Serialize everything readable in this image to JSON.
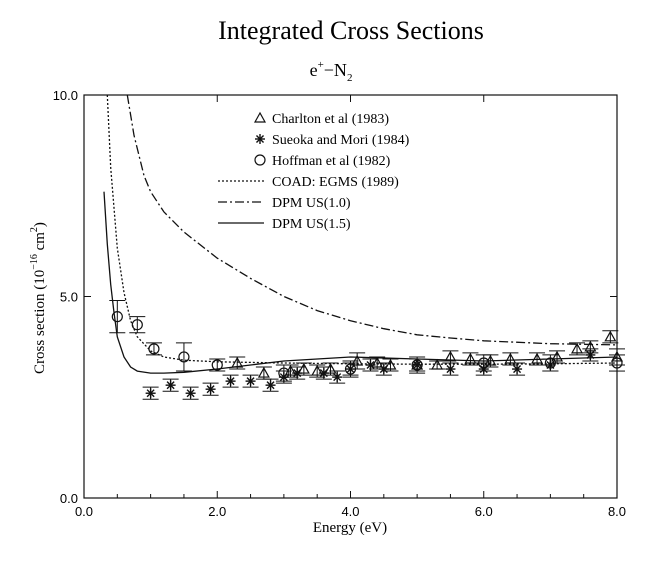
{
  "chart_data": {
    "type": "scatter",
    "title": "Integrated Cross Sections",
    "subtitle": {
      "base": "e",
      "sup": "+",
      "mid": "−N",
      "sub": "2"
    },
    "xlabel": "Energy (eV)",
    "ylabel": {
      "pre": "Cross section (10",
      "exp": "−16",
      "mid": " cm",
      "sup": "2",
      "post": ")"
    },
    "xlim": [
      0.0,
      8.0
    ],
    "ylim": [
      0.0,
      10.0
    ],
    "xticks": [
      "0.0",
      "2.0",
      "4.0",
      "6.0",
      "8.0"
    ],
    "yticks": [
      "0.0",
      "5.0",
      "10.0"
    ],
    "legend_position": "top-right",
    "series": [
      {
        "name": "Charlton et al (1983)",
        "kind": "points",
        "marker": "triangle",
        "points": [
          [
            2.3,
            3.35,
            0.15
          ],
          [
            2.7,
            3.1,
            0.15
          ],
          [
            3.1,
            3.15,
            0.15
          ],
          [
            3.3,
            3.2,
            0.15
          ],
          [
            3.5,
            3.15,
            0.15
          ],
          [
            3.7,
            3.2,
            0.15
          ],
          [
            4.1,
            3.4,
            0.2
          ],
          [
            4.4,
            3.35,
            0.15
          ],
          [
            4.6,
            3.3,
            0.15
          ],
          [
            5.0,
            3.3,
            0.15
          ],
          [
            5.3,
            3.3,
            0.1
          ],
          [
            5.5,
            3.5,
            0.15
          ],
          [
            5.8,
            3.45,
            0.15
          ],
          [
            6.1,
            3.4,
            0.15
          ],
          [
            6.4,
            3.45,
            0.15
          ],
          [
            6.8,
            3.45,
            0.15
          ],
          [
            7.1,
            3.5,
            0.15
          ],
          [
            7.4,
            3.7,
            0.15
          ],
          [
            7.6,
            3.75,
            0.15
          ],
          [
            7.9,
            4.0,
            0.15
          ],
          [
            8.0,
            3.5,
            0.2
          ]
        ]
      },
      {
        "name": "Sueoka and Mori (1984)",
        "kind": "points",
        "marker": "asterisk",
        "points": [
          [
            1.0,
            2.6,
            0.15
          ],
          [
            1.3,
            2.8,
            0.15
          ],
          [
            1.6,
            2.6,
            0.15
          ],
          [
            1.9,
            2.7,
            0.15
          ],
          [
            2.2,
            2.9,
            0.15
          ],
          [
            2.5,
            2.9,
            0.15
          ],
          [
            2.8,
            2.8,
            0.15
          ],
          [
            3.0,
            3.0,
            0.15
          ],
          [
            3.2,
            3.1,
            0.15
          ],
          [
            3.6,
            3.1,
            0.15
          ],
          [
            3.8,
            3.0,
            0.15
          ],
          [
            4.0,
            3.2,
            0.15
          ],
          [
            4.3,
            3.3,
            0.15
          ],
          [
            4.5,
            3.2,
            0.15
          ],
          [
            5.0,
            3.3,
            0.15
          ],
          [
            5.5,
            3.2,
            0.15
          ],
          [
            6.0,
            3.2,
            0.15
          ],
          [
            6.5,
            3.2,
            0.15
          ],
          [
            7.0,
            3.3,
            0.15
          ],
          [
            7.6,
            3.55,
            0.15
          ]
        ]
      },
      {
        "name": "Hoffman et al (1982)",
        "kind": "points",
        "marker": "circle",
        "points": [
          [
            0.5,
            4.5,
            0.4
          ],
          [
            0.8,
            4.3,
            0.2
          ],
          [
            1.05,
            3.7,
            0.15
          ],
          [
            1.5,
            3.5,
            0.35
          ],
          [
            2.0,
            3.3,
            0.15
          ],
          [
            3.0,
            3.1,
            0.2
          ],
          [
            4.0,
            3.2,
            0.2
          ],
          [
            5.0,
            3.3,
            0.2
          ],
          [
            6.0,
            3.35,
            0.2
          ],
          [
            7.0,
            3.35,
            0.2
          ],
          [
            8.0,
            3.35,
            0.2
          ]
        ]
      },
      {
        "name": "COAD: EGMS (1989)",
        "kind": "line",
        "dash": "2,2",
        "points": [
          [
            0.35,
            10.0
          ],
          [
            0.4,
            8.2
          ],
          [
            0.5,
            6.2
          ],
          [
            0.6,
            5.1
          ],
          [
            0.7,
            4.4
          ],
          [
            0.8,
            4.0
          ],
          [
            1.0,
            3.65
          ],
          [
            1.2,
            3.5
          ],
          [
            1.5,
            3.42
          ],
          [
            2.0,
            3.38
          ],
          [
            3.0,
            3.35
          ],
          [
            4.0,
            3.33
          ],
          [
            5.0,
            3.32
          ],
          [
            6.0,
            3.32
          ],
          [
            7.0,
            3.33
          ],
          [
            8.0,
            3.35
          ]
        ]
      },
      {
        "name": "DPM US(1.0)",
        "kind": "line",
        "dash": "9,3,2,3",
        "points": [
          [
            0.65,
            10.0
          ],
          [
            0.75,
            9.0
          ],
          [
            0.9,
            8.0
          ],
          [
            1.0,
            7.6
          ],
          [
            1.2,
            7.1
          ],
          [
            1.5,
            6.6
          ],
          [
            2.0,
            5.95
          ],
          [
            2.5,
            5.45
          ],
          [
            3.0,
            5.0
          ],
          [
            3.5,
            4.65
          ],
          [
            4.0,
            4.4
          ],
          [
            4.5,
            4.2
          ],
          [
            5.0,
            4.05
          ],
          [
            5.5,
            3.97
          ],
          [
            6.0,
            3.9
          ],
          [
            7.0,
            3.83
          ],
          [
            8.0,
            3.8
          ]
        ]
      },
      {
        "name": "DPM US(1.5)",
        "kind": "line",
        "dash": "",
        "points": [
          [
            0.3,
            7.6
          ],
          [
            0.35,
            6.3
          ],
          [
            0.4,
            5.3
          ],
          [
            0.45,
            4.6
          ],
          [
            0.5,
            4.0
          ],
          [
            0.6,
            3.5
          ],
          [
            0.7,
            3.25
          ],
          [
            0.8,
            3.15
          ],
          [
            1.0,
            3.1
          ],
          [
            1.2,
            3.1
          ],
          [
            1.5,
            3.12
          ],
          [
            2.0,
            3.2
          ],
          [
            2.5,
            3.3
          ],
          [
            3.0,
            3.4
          ],
          [
            3.5,
            3.45
          ],
          [
            4.0,
            3.5
          ],
          [
            5.0,
            3.45
          ],
          [
            6.0,
            3.4
          ],
          [
            7.0,
            3.45
          ],
          [
            8.0,
            3.5
          ]
        ]
      }
    ]
  }
}
